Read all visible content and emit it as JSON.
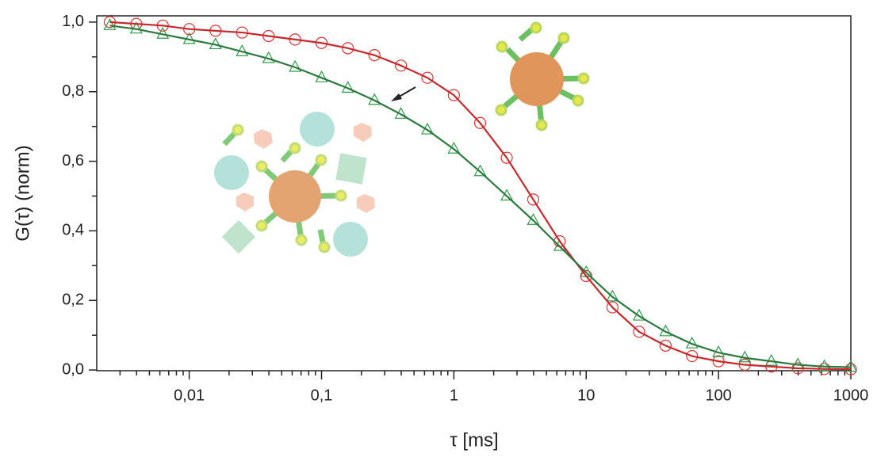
{
  "chart_data": {
    "type": "scatter",
    "x_label": "τ [ms]",
    "y_label": "G(τ) (norm)",
    "x_log": true,
    "xlim": [
      0.002,
      1000
    ],
    "ylim": [
      -0.002,
      1.018
    ],
    "xticks": [
      {
        "value": 0.01,
        "label": "0,01"
      },
      {
        "value": 0.1,
        "label": "0,1"
      },
      1,
      10,
      100,
      1000
    ],
    "yticks": [
      {
        "value": 0,
        "label": "0,0"
      },
      {
        "value": 0.2,
        "label": "0,2"
      },
      {
        "value": 0.4,
        "label": "0,4"
      },
      {
        "value": 0.6,
        "label": "0,6"
      },
      {
        "value": 0.8,
        "label": "0,8"
      },
      {
        "value": 1,
        "label": "1,0"
      }
    ],
    "x": [
      0.00251,
      0.00398,
      0.00631,
      0.01,
      0.0158,
      0.0251,
      0.0398,
      0.0631,
      0.1,
      0.158,
      0.251,
      0.398,
      0.631,
      1,
      1.58,
      2.51,
      3.98,
      6.31,
      10,
      15.8,
      25.1,
      39.8,
      63.1,
      100,
      158,
      251,
      398,
      631,
      1000
    ],
    "series": [
      {
        "marker": "circle",
        "color": "#e03030",
        "line_color": "#c8282c",
        "values": [
          1.0,
          0.995,
          0.99,
          0.98,
          0.975,
          0.97,
          0.96,
          0.95,
          0.94,
          0.925,
          0.905,
          0.875,
          0.84,
          0.79,
          0.71,
          0.61,
          0.49,
          0.37,
          0.27,
          0.18,
          0.11,
          0.07,
          0.04,
          0.025,
          0.015,
          0.01,
          0.005,
          0.003,
          0.002
        ]
      },
      {
        "marker": "triangle",
        "color": "#2e9a4a",
        "line_color": "#2a7a3e",
        "values": [
          0.99,
          0.98,
          0.965,
          0.95,
          0.935,
          0.915,
          0.895,
          0.87,
          0.84,
          0.81,
          0.775,
          0.735,
          0.69,
          0.635,
          0.57,
          0.5,
          0.43,
          0.355,
          0.28,
          0.21,
          0.155,
          0.11,
          0.075,
          0.05,
          0.035,
          0.025,
          0.015,
          0.01,
          0.008
        ]
      }
    ]
  }
}
